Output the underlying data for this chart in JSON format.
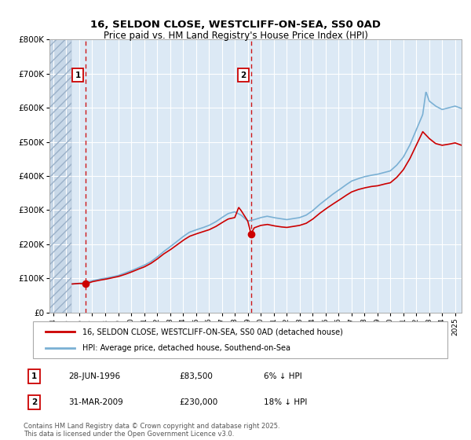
{
  "title": "16, SELDON CLOSE, WESTCLIFF-ON-SEA, SS0 0AD",
  "subtitle": "Price paid vs. HM Land Registry's House Price Index (HPI)",
  "ylim": [
    0,
    800000
  ],
  "yticks": [
    0,
    100000,
    200000,
    300000,
    400000,
    500000,
    600000,
    700000,
    800000
  ],
  "xlim_start": 1993.7,
  "xlim_end": 2025.5,
  "hatch_end_year": 1995.42,
  "vline1_x": 1996.49,
  "vline2_x": 2009.25,
  "point1_x": 1996.49,
  "point1_y": 83500,
  "point2_x": 2009.25,
  "point2_y": 230000,
  "red_line_color": "#cc0000",
  "blue_line_color": "#7ab0d4",
  "annotation1_label": "1",
  "annotation2_label": "2",
  "legend_line1": "16, SELDON CLOSE, WESTCLIFF-ON-SEA, SS0 0AD (detached house)",
  "legend_line2": "HPI: Average price, detached house, Southend-on-Sea",
  "table_row1": [
    "1",
    "28-JUN-1996",
    "£83,500",
    "6% ↓ HPI"
  ],
  "table_row2": [
    "2",
    "31-MAR-2009",
    "£230,000",
    "18% ↓ HPI"
  ],
  "footnote": "Contains HM Land Registry data © Crown copyright and database right 2025.\nThis data is licensed under the Open Government Licence v3.0.",
  "background_color": "#ffffff",
  "plot_bg_color": "#dce9f5",
  "grid_color": "#ffffff",
  "hatch_color": "#c8d8e8"
}
